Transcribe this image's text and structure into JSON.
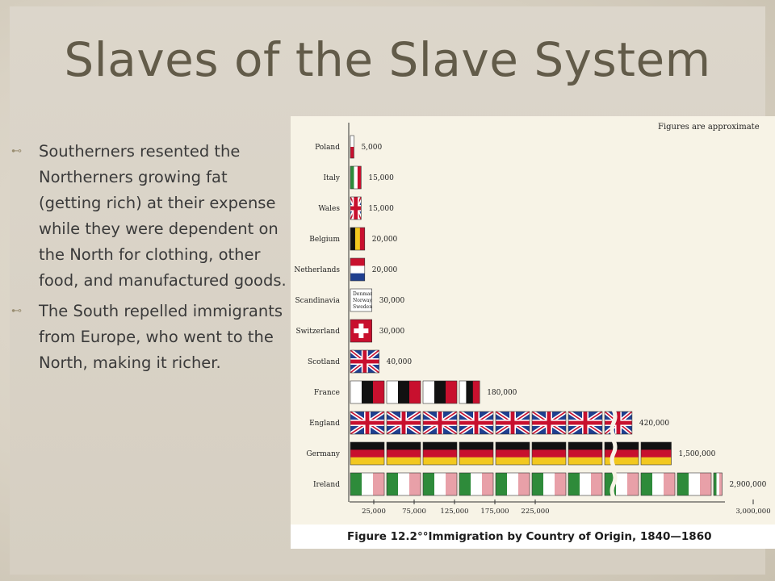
{
  "slide": {
    "title": "Slaves of the Slave System",
    "bullets": [
      "Southerners resented the Northerners growing fat (getting rich) at their expense while they were dependent on the North for clothing, other food, and manufactured goods.",
      "The South repelled immigrants from Europe, who went to the North, making it richer."
    ]
  },
  "chart_data": {
    "type": "bar",
    "title": "Figure 12.2°°Immigration by Country of Origin, 1840—1860",
    "note": "Figures are approximate",
    "categories": [
      "Poland",
      "Italy",
      "Wales",
      "Belgium",
      "Netherlands",
      "Scandinavia",
      "Switzerland",
      "Scotland",
      "France",
      "England",
      "Germany",
      "Ireland"
    ],
    "values": [
      5000,
      15000,
      15000,
      20000,
      20000,
      30000,
      30000,
      40000,
      180000,
      420000,
      1500000,
      2900000
    ],
    "value_labels": [
      "5,000",
      "15,000",
      "15,000",
      "20,000",
      "20,000",
      "30,000",
      "30,000",
      "40,000",
      "180,000",
      "420,000",
      "1,500,000",
      "2,900,000"
    ],
    "flag_labels": {
      "Scandinavia": [
        "Denmark",
        "Norway",
        "Sweden"
      ]
    },
    "x_ticks": [
      "25,000",
      "75,000",
      "125,000",
      "175,000",
      "225,000",
      "3,000,000"
    ],
    "axis_break": true,
    "colors": {
      "red": "#c8102e",
      "blue": "#1f3f8f",
      "green": "#2e8b3a",
      "black": "#111111",
      "yellow": "#f2c81f",
      "pink": "#e8a0a8"
    }
  }
}
